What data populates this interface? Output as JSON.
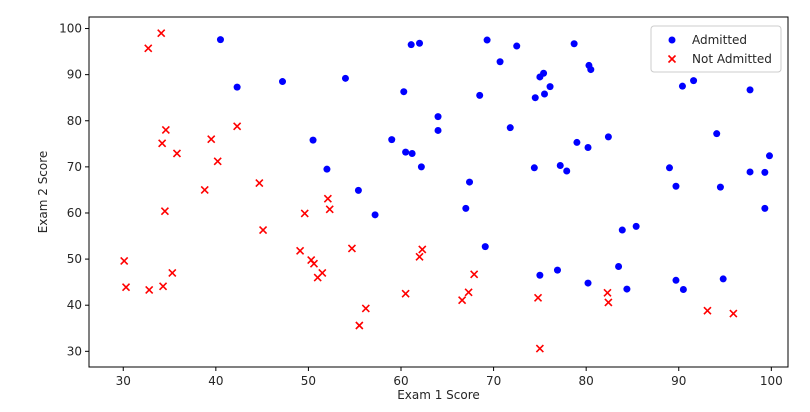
{
  "chart_data": {
    "type": "scatter",
    "xlabel": "Exam 1 Score",
    "ylabel": "Exam 2 Score",
    "xlim": [
      26.3,
      101.8
    ],
    "ylim": [
      26.6,
      102.5
    ],
    "xticks": [
      30,
      40,
      50,
      60,
      70,
      80,
      90,
      100
    ],
    "yticks": [
      30,
      40,
      50,
      60,
      70,
      80,
      90,
      100
    ],
    "grid": false,
    "legend_position": "top-right",
    "series": [
      {
        "name": "Admitted",
        "marker": "circle",
        "color": "#0000ff",
        "points": [
          [
            40.5,
            97.6
          ],
          [
            42.3,
            87.3
          ],
          [
            47.2,
            88.5
          ],
          [
            54.0,
            89.2
          ],
          [
            60.3,
            86.3
          ],
          [
            61.1,
            96.5
          ],
          [
            62.0,
            96.8
          ],
          [
            69.3,
            97.5
          ],
          [
            70.7,
            92.8
          ],
          [
            72.5,
            96.2
          ],
          [
            75.0,
            89.5
          ],
          [
            75.4,
            90.3
          ],
          [
            76.1,
            87.4
          ],
          [
            74.5,
            85.0
          ],
          [
            75.5,
            85.8
          ],
          [
            78.7,
            96.7
          ],
          [
            80.3,
            92.0
          ],
          [
            80.5,
            91.1
          ],
          [
            68.5,
            85.5
          ],
          [
            71.8,
            78.5
          ],
          [
            64.0,
            80.9
          ],
          [
            64.0,
            77.9
          ],
          [
            50.5,
            75.8
          ],
          [
            52.0,
            69.5
          ],
          [
            59.0,
            75.9
          ],
          [
            60.5,
            73.2
          ],
          [
            61.2,
            72.9
          ],
          [
            62.2,
            70.0
          ],
          [
            55.4,
            64.9
          ],
          [
            57.2,
            59.6
          ],
          [
            67.0,
            61.0
          ],
          [
            67.4,
            66.7
          ],
          [
            69.1,
            52.7
          ],
          [
            74.4,
            69.8
          ],
          [
            77.2,
            70.3
          ],
          [
            77.9,
            69.1
          ],
          [
            79.0,
            75.3
          ],
          [
            80.2,
            74.2
          ],
          [
            82.4,
            76.5
          ],
          [
            89.0,
            69.8
          ],
          [
            89.7,
            65.8
          ],
          [
            94.1,
            77.2
          ],
          [
            94.5,
            65.6
          ],
          [
            97.7,
            86.7
          ],
          [
            97.7,
            68.9
          ],
          [
            99.3,
            68.8
          ],
          [
            99.8,
            72.4
          ],
          [
            99.3,
            61.0
          ],
          [
            90.4,
            87.5
          ],
          [
            91.6,
            88.7
          ],
          [
            83.5,
            48.4
          ],
          [
            83.9,
            56.3
          ],
          [
            85.4,
            57.1
          ],
          [
            84.4,
            43.5
          ],
          [
            80.2,
            44.8
          ],
          [
            76.9,
            47.6
          ],
          [
            75.0,
            46.5
          ],
          [
            89.7,
            45.4
          ],
          [
            90.5,
            43.4
          ],
          [
            94.8,
            45.7
          ]
        ]
      },
      {
        "name": "Not Admitted",
        "marker": "x",
        "color": "#ff0000",
        "points": [
          [
            34.1,
            99.0
          ],
          [
            32.7,
            95.7
          ],
          [
            34.6,
            78.0
          ],
          [
            34.2,
            75.1
          ],
          [
            35.8,
            72.9
          ],
          [
            39.5,
            76.0
          ],
          [
            40.2,
            71.2
          ],
          [
            42.3,
            78.8
          ],
          [
            38.8,
            65.0
          ],
          [
            34.5,
            60.4
          ],
          [
            44.7,
            66.5
          ],
          [
            45.1,
            56.3
          ],
          [
            49.6,
            59.9
          ],
          [
            52.1,
            63.1
          ],
          [
            52.3,
            60.8
          ],
          [
            30.1,
            49.6
          ],
          [
            30.3,
            43.9
          ],
          [
            32.8,
            43.3
          ],
          [
            34.3,
            44.1
          ],
          [
            35.3,
            47.0
          ],
          [
            49.1,
            51.8
          ],
          [
            50.3,
            49.8
          ],
          [
            50.6,
            49.0
          ],
          [
            51.0,
            46.0
          ],
          [
            51.5,
            47.0
          ],
          [
            54.7,
            52.3
          ],
          [
            55.5,
            35.6
          ],
          [
            56.2,
            39.3
          ],
          [
            60.5,
            42.5
          ],
          [
            62.0,
            50.5
          ],
          [
            62.3,
            52.1
          ],
          [
            66.6,
            41.1
          ],
          [
            67.3,
            42.8
          ],
          [
            67.9,
            46.7
          ],
          [
            74.8,
            41.6
          ],
          [
            75.0,
            30.6
          ],
          [
            82.3,
            42.7
          ],
          [
            82.4,
            40.6
          ],
          [
            93.1,
            38.8
          ],
          [
            95.9,
            38.2
          ]
        ]
      }
    ]
  }
}
